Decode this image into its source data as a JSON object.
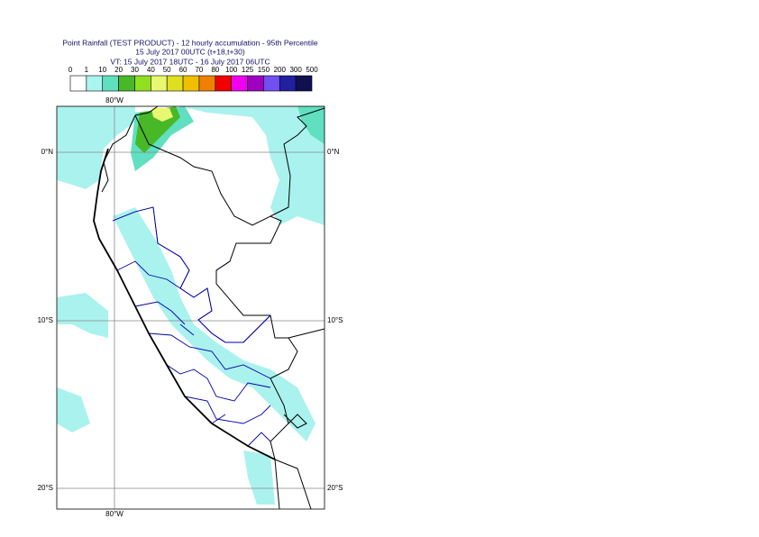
{
  "header": {
    "title": "Point Rainfall (TEST PRODUCT) - 12 hourly accumulation - 95th Percentile",
    "run": "15 July 2017 00UTC (t+18,t+30)",
    "valid": "VT: 15 July 2017 18UTC - 16 July 2017 06UTC"
  },
  "legend": {
    "labels": [
      "0",
      "1",
      "10",
      "20",
      "30",
      "40",
      "50",
      "60",
      "70",
      "80",
      "100",
      "125",
      "150",
      "200",
      "300",
      "500"
    ],
    "colors": [
      "#ffffff",
      "#aaf5f0",
      "#60e0c0",
      "#48b828",
      "#90e020",
      "#e8f870",
      "#e0e020",
      "#f0c000",
      "#f08000",
      "#f00000",
      "#f000f0",
      "#a000c0",
      "#7050f0",
      "#2020a0",
      "#101050"
    ]
  },
  "map": {
    "lon_label": "80°W",
    "lat_labels": [
      "0°N",
      "10°S",
      "20°S"
    ]
  }
}
